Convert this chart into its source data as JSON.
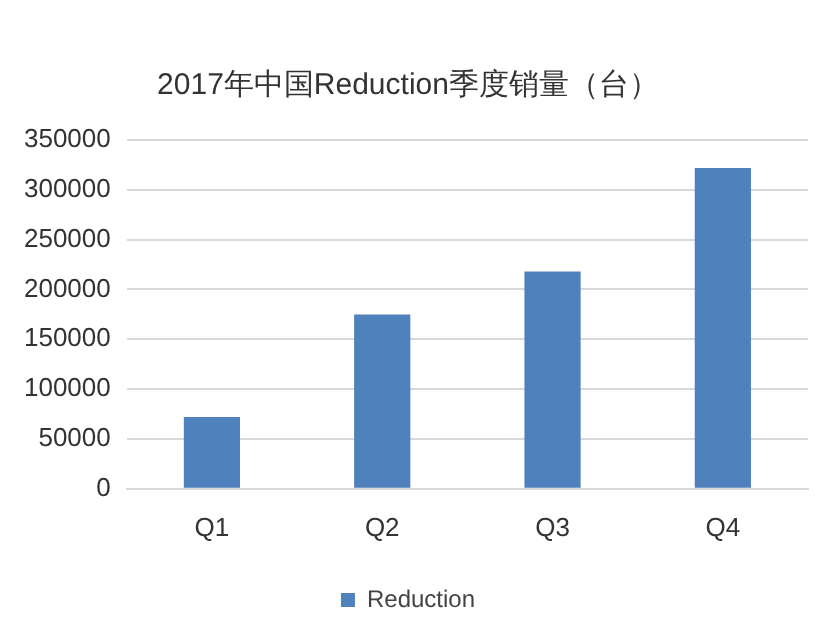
{
  "chart_data": {
    "type": "bar",
    "title": "2017年中国Reduction季度销量（台）",
    "categories": [
      "Q1",
      "Q2",
      "Q3",
      "Q4"
    ],
    "series": [
      {
        "name": "Reduction",
        "color": "#4f81bd",
        "values": [
          72000,
          175000,
          218000,
          322000
        ]
      }
    ],
    "ylim": [
      0,
      350000
    ],
    "yticks": [
      0,
      50000,
      100000,
      150000,
      200000,
      250000,
      300000,
      350000
    ],
    "grid": "y",
    "legend": "bottom"
  }
}
